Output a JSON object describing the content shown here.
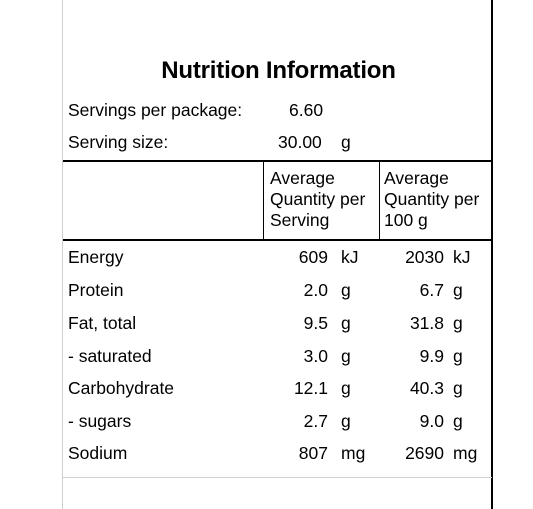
{
  "title": "Nutrition Information",
  "servings": {
    "label": "Servings per package:",
    "value": "6.60"
  },
  "serving_size": {
    "label": "Serving size:",
    "value": "30.00",
    "unit": "g"
  },
  "headers": {
    "per_serving": [
      "Average",
      "Quantity per",
      "Serving"
    ],
    "per_100g": [
      "Average",
      "Quantity per",
      "100 g"
    ]
  },
  "rows": [
    {
      "name": "Energy",
      "serving": "609",
      "serving_unit": "kJ",
      "per100": "2030",
      "per100_unit": "kJ"
    },
    {
      "name": "Protein",
      "serving": "2.0",
      "serving_unit": "g",
      "per100": "6.7",
      "per100_unit": "g"
    },
    {
      "name": "Fat, total",
      "serving": "9.5",
      "serving_unit": "g",
      "per100": "31.8",
      "per100_unit": "g"
    },
    {
      "name": "- saturated",
      "serving": "3.0",
      "serving_unit": "g",
      "per100": "9.9",
      "per100_unit": "g"
    },
    {
      "name": "Carbohydrate",
      "serving": "12.1",
      "serving_unit": "g",
      "per100": "40.3",
      "per100_unit": "g"
    },
    {
      "name": "- sugars",
      "serving": "2.7",
      "serving_unit": "g",
      "per100": "9.0",
      "per100_unit": "g"
    },
    {
      "name": "Sodium",
      "serving": "807",
      "serving_unit": "mg",
      "per100": "2690",
      "per100_unit": "mg"
    }
  ]
}
